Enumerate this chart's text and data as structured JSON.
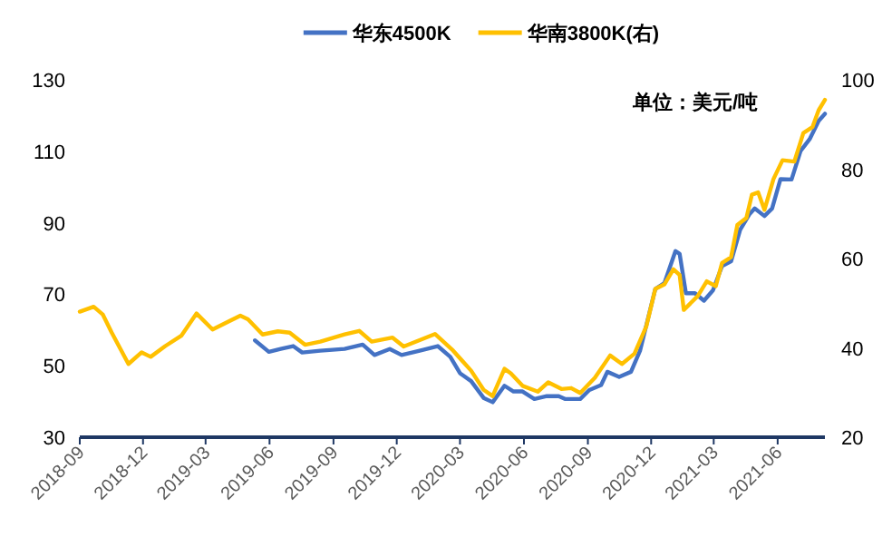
{
  "chart_data": {
    "type": "line",
    "legend": "top",
    "grid": false,
    "line_style": "solid",
    "annotations": [
      "单位：美元/吨"
    ],
    "xlim": [
      "2018-09-01",
      "2021-08-08"
    ],
    "xticks": [
      "2018-09",
      "2018-12",
      "2019-03",
      "2019-06",
      "2019-09",
      "2019-12",
      "2020-03",
      "2020-06",
      "2020-09",
      "2020-12",
      "2021-03",
      "2021-06"
    ],
    "ylim": [
      30,
      130
    ],
    "yticks": [
      30,
      50,
      70,
      90,
      110,
      130
    ],
    "y2lim": [
      20,
      100
    ],
    "y2ticks": [
      20,
      40,
      60,
      80,
      100
    ],
    "series": [
      {
        "name": "华东4500K",
        "color": "#4472c4",
        "x": [
          "2019-05-11",
          "2019-05-31",
          "2019-06-17",
          "2019-07-05",
          "2019-07-18",
          "2019-08-13",
          "2019-09-17",
          "2019-10-13",
          "2019-10-30",
          "2019-11-21",
          "2019-12-08",
          "2020-01-03",
          "2020-01-29",
          "2020-02-16",
          "2020-03-01",
          "2020-03-17",
          "2020-04-04",
          "2020-04-17",
          "2020-05-04",
          "2020-05-17",
          "2020-05-30",
          "2020-06-16",
          "2020-07-04",
          "2020-07-21",
          "2020-07-30",
          "2020-08-21",
          "2020-09-03",
          "2020-09-20",
          "2020-09-29",
          "2020-10-16",
          "2020-11-02",
          "2020-11-15",
          "2020-12-07",
          "2020-12-20",
          "2021-01-05",
          "2021-01-11",
          "2021-01-20",
          "2021-02-02",
          "2021-02-15",
          "2021-02-28",
          "2021-03-13",
          "2021-03-26",
          "2021-04-08",
          "2021-04-21",
          "2021-04-29",
          "2021-05-13",
          "2021-05-24",
          "2021-06-05",
          "2021-06-21",
          "2021-07-04",
          "2021-07-17",
          "2021-07-30",
          "2021-08-08"
        ],
        "values": [
          57.1,
          53.9,
          54.7,
          55.5,
          53.7,
          54.2,
          54.7,
          55.9,
          53.0,
          54.7,
          53.0,
          54.2,
          55.5,
          52.5,
          47.9,
          45.7,
          41.0,
          39.8,
          44.4,
          42.8,
          42.8,
          40.7,
          41.5,
          41.5,
          40.7,
          40.7,
          43.2,
          44.6,
          48.3,
          46.9,
          48.3,
          54.2,
          71.5,
          73.1,
          82.1,
          81.3,
          70.3,
          70.3,
          68.2,
          71.1,
          77.9,
          79.2,
          88.0,
          92.3,
          94.0,
          91.9,
          94.0,
          102.2,
          102.1,
          110.1,
          113.4,
          118.5,
          120.5
        ]
      },
      {
        "name": "华南3800K(右)",
        "color": "#ffc000",
        "axis": "y2",
        "x": [
          "2018-09-01",
          "2018-09-21",
          "2018-10-04",
          "2018-10-17",
          "2018-11-10",
          "2018-11-29",
          "2018-12-12",
          "2019-01-02",
          "2019-01-25",
          "2019-02-16",
          "2019-03-11",
          "2019-04-20",
          "2019-05-01",
          "2019-05-22",
          "2019-06-13",
          "2019-06-30",
          "2019-07-22",
          "2019-08-13",
          "2019-09-17",
          "2019-10-08",
          "2019-10-26",
          "2019-11-25",
          "2019-12-11",
          "2020-01-25",
          "2020-02-20",
          "2020-03-17",
          "2020-04-04",
          "2020-04-17",
          "2020-05-04",
          "2020-05-13",
          "2020-05-30",
          "2020-06-21",
          "2020-07-06",
          "2020-07-25",
          "2020-08-08",
          "2020-08-21",
          "2020-09-11",
          "2020-10-03",
          "2020-10-20",
          "2020-11-07",
          "2020-11-24",
          "2020-12-07",
          "2020-12-20",
          "2021-01-02",
          "2021-01-11",
          "2021-01-17",
          "2021-02-06",
          "2021-02-19",
          "2021-03-04",
          "2021-03-13",
          "2021-03-26",
          "2021-04-04",
          "2021-04-17",
          "2021-04-25",
          "2021-05-04",
          "2021-05-13",
          "2021-05-26",
          "2021-06-08",
          "2021-06-25",
          "2021-07-08",
          "2021-07-21",
          "2021-07-30",
          "2021-08-08"
        ],
        "values": [
          48.1,
          49.2,
          47.5,
          43.4,
          36.4,
          39.0,
          38.0,
          40.4,
          42.7,
          47.7,
          44.1,
          47.2,
          46.4,
          43.0,
          43.7,
          43.4,
          40.7,
          41.4,
          43.0,
          43.8,
          41.4,
          42.3,
          40.3,
          43.1,
          39.4,
          34.9,
          30.6,
          29.2,
          35.3,
          34.3,
          31.5,
          30.2,
          32.3,
          30.8,
          31.0,
          29.9,
          33.3,
          38.3,
          36.4,
          38.7,
          44.8,
          53.2,
          54.2,
          57.6,
          56.3,
          48.5,
          51.6,
          54.9,
          53.8,
          59.0,
          60.3,
          67.5,
          69.1,
          74.3,
          74.8,
          70.9,
          77.8,
          82.0,
          81.7,
          88.1,
          89.4,
          93.2,
          95.5
        ]
      }
    ]
  }
}
